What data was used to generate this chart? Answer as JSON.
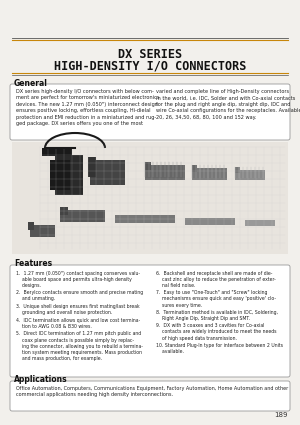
{
  "title_line1": "DX SERIES",
  "title_line2": "HIGH-DENSITY I/O CONNECTORS",
  "bg_color": "#f2f0ec",
  "section_general": "General",
  "general_text_left": "DX series high-density I/O connectors with below com-\nment are perfect for tomorrow's miniaturized electronics\ndevices. The new 1.27 mm (0.050\") interconnect design\nensures positive locking, effortless coupling, Hi-dielal\nprotection and EMI reduction in a miniaturized and rug-\nged package. DX series offers you one of the most",
  "general_text_right": "varied and complete line of High-Density connectors\nin the world, i.e. IDC, Solder and with Co-axial contacts\nfor the plug and right angle dip, straight dip, IDC and\nwire Co-axial configurations for the receptacles. Available in\n20, 26, 34,50, 68, 80, 100 and 152 way.",
  "section_features": "Features",
  "features_left": [
    "1.  1.27 mm (0.050\") contact spacing conserves valu-\n    able board space and permits ultra-high density\n    designs.",
    "2.  Berylco contacts ensure smooth and precise mating\n    and unmating.",
    "3.  Unique shell design ensures first mating/last break\n    grounding and overall noise protection.",
    "4.  IDC termination allows quick and low cost termina-\n    tion to AWG 0.08 & B30 wires.",
    "5.  Direct IDC termination of 1.27 mm pitch public and\n    coax plane contacts is possible simply by replac-\n    ing the connector, allowing you to rebuild a termina-\n    tion system meeting requirements. Mass production\n    and mass production, for example."
  ],
  "features_right": [
    "6.  Backshell and receptacle shell are made of die-\n    cast zinc alloy to reduce the penetration of exter-\n    nal field noise.",
    "7.  Easy to use \"One-Touch\" and \"Screw\" locking\n    mechanisms ensure quick and easy 'positive' clo-\n    sures every time.",
    "8.  Termination method is available in IDC, Soldering,\n    Right Angle Dip, Straight Dip and SMT.",
    "9.  DX with 3 coaxes and 3 cavities for Co-axial\n    contacts are widely introduced to meet the needs\n    of high speed data transmission.",
    "10. Standard Plug-In type for interface between 2 Units\n    available."
  ],
  "section_applications": "Applications",
  "applications_text": "Office Automation, Computers, Communications Equipment, Factory Automation, Home Automation and other\ncommercial applications needing high density interconnections.",
  "page_number": "189",
  "line_color_orange": "#c8860a",
  "line_color_dark": "#555555"
}
